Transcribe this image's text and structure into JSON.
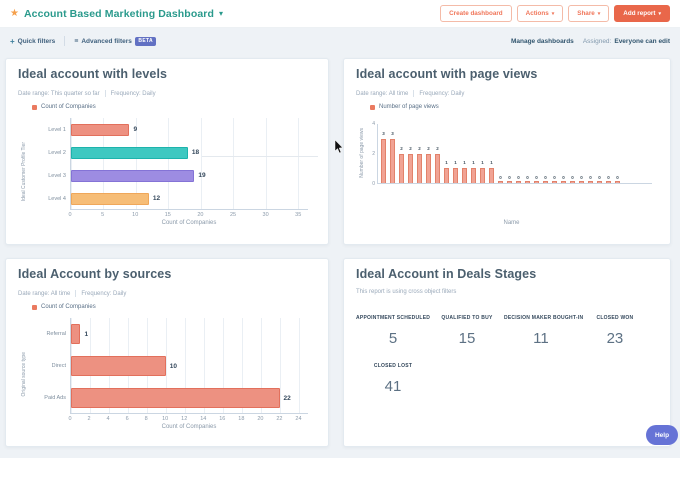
{
  "icons": {
    "star": "★",
    "caret_down": "▾",
    "plus": "+",
    "filter_list": "≡"
  },
  "header": {
    "title": "Account Based Marketing Dashboard",
    "buttons": {
      "create_dashboard": "Create dashboard",
      "actions": "Actions",
      "share": "Share",
      "add_report": "Add report"
    }
  },
  "filter_bar": {
    "quick_filters": "Quick filters",
    "advanced_filters": "Advanced filters",
    "beta_badge": "BETA",
    "manage_dashboards": "Manage dashboards",
    "assigned_label": "Assigned:",
    "assigned_value": "Everyone can edit"
  },
  "help_button": {
    "label": "Help"
  },
  "colors": {
    "accent_orange": "#e9674a",
    "brand_teal": "#2a9a8c",
    "beta_badge": "#6271c3",
    "help_button": "#6673d6",
    "coral_bar": "#ed9181",
    "teal_bar": "#3ec8c1",
    "purple_bar": "#9d8ce2",
    "amber_bar": "#f6bd77"
  },
  "chart_data": [
    {
      "panel": "ideal-account-with-levels",
      "type": "bar",
      "orientation": "horizontal",
      "title": "Ideal account with levels",
      "date_range": "Date range: This quarter so far",
      "frequency": "Frequency: Daily",
      "legend": [
        {
          "label": "Count of Companies",
          "color": "#ea7a60"
        }
      ],
      "categories": [
        "Level 1",
        "Level 2",
        "Level 3",
        "Level 4"
      ],
      "values": [
        9,
        18,
        19,
        12
      ],
      "bar_colors": [
        "#ed9181",
        "#3ec8c1",
        "#9d8ce2",
        "#f6bd77"
      ],
      "bar_borders": [
        "#e2705c",
        "#1db3ac",
        "#8473d6",
        "#efa75a"
      ],
      "xlabel": "Count of Companies",
      "ylabel": "Ideal Customer Profile Tier",
      "xticks": [
        0,
        5,
        10,
        15,
        20,
        25,
        30,
        35
      ],
      "xmax": 36.5,
      "grid": true,
      "legend_position": "top-left"
    },
    {
      "panel": "ideal-account-with-page-views",
      "type": "bar",
      "orientation": "vertical",
      "title": "Ideal account with page views",
      "date_range": "Date range: All time",
      "frequency": "Frequency: Daily",
      "legend": [
        {
          "label": "Number of page views",
          "color": "#ea7a60"
        }
      ],
      "values": [
        3,
        3,
        2,
        2,
        2,
        2,
        2,
        1,
        1,
        1,
        1,
        1,
        1,
        0,
        0,
        0,
        0,
        0,
        0,
        0,
        0,
        0,
        0,
        0,
        0,
        0,
        0
      ],
      "bar_color": "#f1a394",
      "bar_border": "#e2826b",
      "xlabel": "Name",
      "ylabel": "Number of page views",
      "yticks": [
        0,
        2,
        4
      ],
      "ymax": 4,
      "grid": false,
      "legend_position": "top-left"
    },
    {
      "panel": "ideal-account-by-sources",
      "type": "bar",
      "orientation": "horizontal",
      "title": "Ideal Account by sources",
      "date_range": "Date range: All time",
      "frequency": "Frequency: Daily",
      "legend": [
        {
          "label": "Count of Companies",
          "color": "#ea7a60"
        }
      ],
      "categories": [
        "Referral",
        "Direct",
        "Paid Ads"
      ],
      "values": [
        1,
        10,
        22
      ],
      "bar_colors": [
        "#ed9181",
        "#ed9181",
        "#ed9181"
      ],
      "bar_borders": [
        "#e2705c",
        "#e2705c",
        "#e2705c"
      ],
      "xlabel": "Count of Companies",
      "ylabel": "Original source type",
      "xticks": [
        0,
        2,
        4,
        6,
        8,
        10,
        12,
        14,
        16,
        18,
        20,
        22,
        24
      ],
      "xmax": 25,
      "grid": true,
      "legend_position": "top-left"
    },
    {
      "panel": "ideal-account-in-deals-stages",
      "type": "table",
      "title": "Ideal Account in Deals Stages",
      "subtitle": "This report is using cross object filters",
      "stages": [
        {
          "label": "APPOINTMENT SCHEDULED",
          "value": 5
        },
        {
          "label": "QUALIFIED TO BUY",
          "value": 15
        },
        {
          "label": "DECISION MAKER BOUGHT-IN",
          "value": 11
        },
        {
          "label": "CLOSED WON",
          "value": 23
        },
        {
          "label": "CLOSED LOST",
          "value": 41
        }
      ]
    }
  ]
}
